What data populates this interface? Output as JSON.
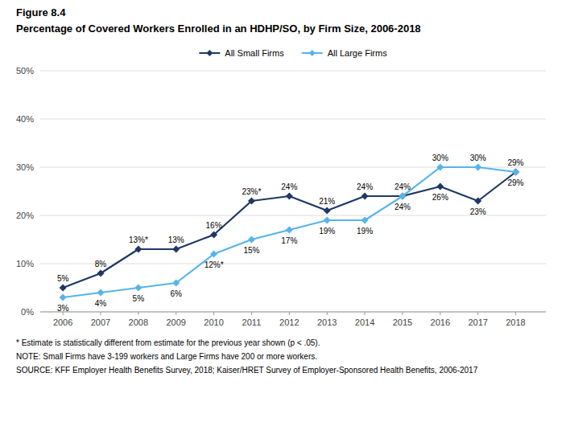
{
  "chart_data": {
    "type": "line",
    "title": "Figure 8.4",
    "subtitle": "Percentage of Covered Workers Enrolled in an HDHP/SO, by Firm Size, 2006-2018",
    "x": [
      2006,
      2007,
      2008,
      2009,
      2010,
      2011,
      2012,
      2013,
      2014,
      2015,
      2016,
      2017,
      2018
    ],
    "series": [
      {
        "name": "All Small Firms",
        "color": "#1f3864",
        "marker": "diamond",
        "values": [
          5,
          8,
          13,
          13,
          16,
          23,
          24,
          21,
          24,
          24,
          26,
          23,
          29
        ],
        "value_labels": [
          "5%",
          "8%",
          "13%*",
          "13%",
          "16%",
          "23%*",
          "24%",
          "21%",
          "24%",
          "24%",
          "26%",
          "23%",
          "29%"
        ]
      },
      {
        "name": "All Large Firms",
        "color": "#56b4e9",
        "marker": "diamond",
        "values": [
          3,
          4,
          5,
          6,
          12,
          15,
          17,
          19,
          19,
          24,
          30,
          30,
          29
        ],
        "value_labels": [
          "3%",
          "4%",
          "5%",
          "6%",
          "12%*",
          "15%",
          "17%",
          "19%",
          "19%",
          "24%",
          "30%",
          "30%",
          "29%"
        ]
      }
    ],
    "xlim": [
      2005.4,
      2018.8
    ],
    "xticks": [
      2006,
      2007,
      2008,
      2009,
      2010,
      2011,
      2012,
      2013,
      2014,
      2015,
      2016,
      2017,
      2018
    ],
    "ylim": [
      0,
      50
    ],
    "yticks": [
      {
        "value": 0,
        "label": "0%"
      },
      {
        "value": 10,
        "label": "10%"
      },
      {
        "value": 20,
        "label": "20%"
      },
      {
        "value": 30,
        "label": "30%"
      },
      {
        "value": 40,
        "label": "40%"
      },
      {
        "value": 50,
        "label": "50%"
      }
    ],
    "grid": true,
    "legend": "top",
    "data_labels": true,
    "annotations": [
      "* Estimate is statistically different from estimate for the previous year shown (p < .05).",
      "NOTE: Small Firms have 3-199 workers and Large Firms have 200 or more workers.",
      "SOURCE: KFF Employer Health Benefits Survey, 2018; Kaiser/HRET Survey of Employer-Sponsored Health Benefits, 2006-2017"
    ]
  }
}
